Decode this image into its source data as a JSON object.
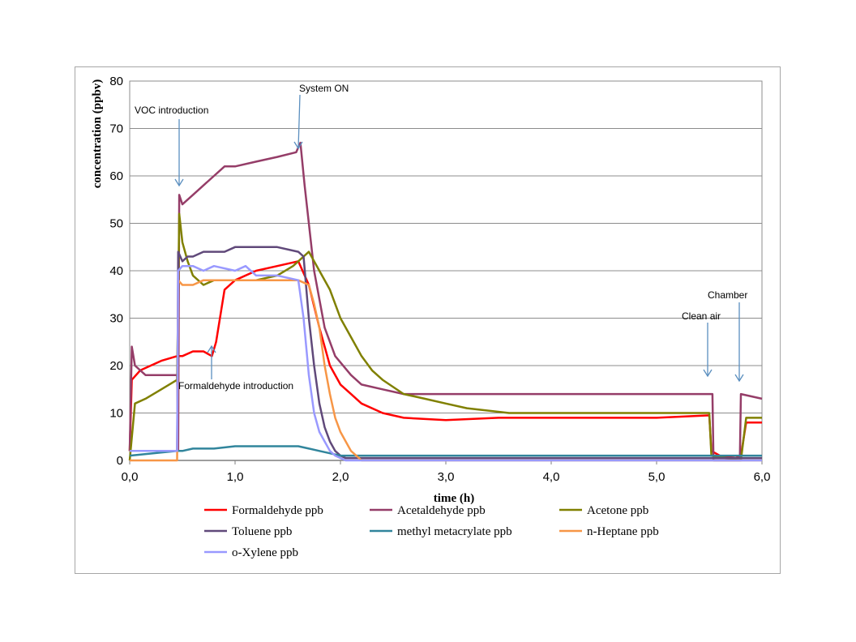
{
  "chart_data": {
    "type": "line",
    "title": "",
    "xlabel": "time (h)",
    "ylabel": "concentration (ppbv)",
    "xlim": [
      0,
      6
    ],
    "ylim": [
      0,
      80
    ],
    "x_ticks": [
      "0,0",
      "1,0",
      "2,0",
      "3,0",
      "4,0",
      "5,0",
      "6,0"
    ],
    "y_ticks": [
      "0",
      "10",
      "20",
      "30",
      "40",
      "50",
      "60",
      "70",
      "80"
    ],
    "grid": "horizontal",
    "legend_position": "bottom",
    "series": [
      {
        "name": "Formaldehyde ppb",
        "color": "#ff0000",
        "x": [
          0.0,
          0.02,
          0.1,
          0.2,
          0.3,
          0.45,
          0.5,
          0.6,
          0.7,
          0.78,
          0.82,
          0.9,
          1.0,
          1.2,
          1.4,
          1.6,
          1.7,
          1.8,
          1.9,
          2.0,
          2.1,
          2.2,
          2.4,
          2.6,
          3.0,
          3.5,
          4.0,
          5.0,
          5.5,
          5.52,
          5.6,
          5.75,
          5.8,
          5.85,
          6.0
        ],
        "y": [
          2,
          17,
          19,
          20,
          21,
          22,
          22,
          23,
          23,
          22,
          25,
          36,
          38,
          40,
          41,
          42,
          37,
          28,
          20,
          16,
          14,
          12,
          10,
          9,
          8.5,
          9,
          9,
          9,
          9.5,
          2,
          1,
          0.5,
          1,
          8,
          8
        ]
      },
      {
        "name": "Acetaldehyde ppb",
        "color": "#953d68",
        "x": [
          0.0,
          0.02,
          0.05,
          0.15,
          0.45,
          0.46,
          0.47,
          0.5,
          0.6,
          0.7,
          0.8,
          0.9,
          1.0,
          1.2,
          1.4,
          1.58,
          1.62,
          1.66,
          1.75,
          1.85,
          1.95,
          2.1,
          2.2,
          2.4,
          2.6,
          3.0,
          5.53,
          5.54,
          5.79,
          5.8,
          6.0
        ],
        "y": [
          2,
          24,
          20,
          18,
          18,
          2,
          56,
          54,
          56,
          58,
          60,
          62,
          62,
          63,
          64,
          65,
          67,
          58,
          40,
          28,
          22,
          18,
          16,
          15,
          14,
          14,
          14,
          0,
          0,
          14,
          13
        ]
      },
      {
        "name": "Acetone ppb",
        "color": "#808000",
        "x": [
          0.0,
          0.05,
          0.15,
          0.3,
          0.45,
          0.47,
          0.5,
          0.55,
          0.6,
          0.7,
          0.8,
          1.0,
          1.2,
          1.4,
          1.55,
          1.65,
          1.7,
          1.8,
          1.9,
          2.0,
          2.1,
          2.2,
          2.3,
          2.4,
          2.6,
          2.8,
          3.0,
          3.2,
          3.6,
          5.5,
          5.52,
          5.8,
          5.85,
          6.0
        ],
        "y": [
          0,
          12,
          13,
          15,
          17,
          52,
          46,
          42,
          39,
          37,
          38,
          38,
          38,
          39,
          41,
          43,
          44,
          40,
          36,
          30,
          26,
          22,
          19,
          17,
          14,
          13,
          12,
          11,
          10,
          10,
          1,
          0,
          9,
          9
        ]
      },
      {
        "name": "Toluene ppb",
        "color": "#60497a",
        "x": [
          0.0,
          0.45,
          0.46,
          0.5,
          0.55,
          0.6,
          0.7,
          0.8,
          0.9,
          1.0,
          1.2,
          1.4,
          1.6,
          1.65,
          1.7,
          1.75,
          1.8,
          1.85,
          1.9,
          1.95,
          2.0,
          2.05,
          2.15,
          2.3,
          3.0,
          4.0,
          5.0,
          6.0
        ],
        "y": [
          2,
          2,
          44,
          42,
          43,
          43,
          44,
          44,
          44,
          45,
          45,
          45,
          44,
          43,
          30,
          20,
          12,
          7,
          4,
          2,
          1,
          0.5,
          0.5,
          0.5,
          0.5,
          0.5,
          0.5,
          0.5
        ]
      },
      {
        "name": "methyl metacrylate ppb",
        "color": "#31859c",
        "x": [
          0.0,
          0.45,
          0.5,
          0.6,
          0.8,
          1.0,
          1.2,
          1.4,
          1.6,
          1.7,
          1.8,
          1.9,
          2.0,
          2.2,
          2.5,
          3.0,
          4.0,
          5.0,
          5.5,
          5.52,
          5.8,
          6.0
        ],
        "y": [
          1,
          2,
          2,
          2.5,
          2.5,
          3,
          3,
          3,
          3,
          2.5,
          2,
          1.5,
          1,
          1,
          1,
          1,
          1,
          1,
          1,
          1,
          1,
          1
        ]
      },
      {
        "name": "n-Heptane ppb",
        "color": "#f79646",
        "x": [
          0.0,
          0.45,
          0.46,
          0.5,
          0.6,
          0.7,
          0.8,
          1.0,
          1.2,
          1.4,
          1.6,
          1.7,
          1.75,
          1.8,
          1.85,
          1.9,
          1.95,
          2.0,
          2.05,
          2.1,
          2.15,
          2.2,
          2.4,
          3.0,
          4.0,
          5.0,
          6.0
        ],
        "y": [
          0,
          0,
          38,
          37,
          37,
          38,
          38,
          38,
          38,
          38,
          38,
          37,
          33,
          28,
          20,
          14,
          9,
          6,
          4,
          2,
          1,
          0,
          0,
          0,
          0,
          0,
          0
        ]
      },
      {
        "name": "o-Xylene ppb",
        "color": "#9999ff",
        "x": [
          0.0,
          0.45,
          0.46,
          0.5,
          0.6,
          0.7,
          0.8,
          1.0,
          1.1,
          1.2,
          1.4,
          1.6,
          1.65,
          1.7,
          1.75,
          1.8,
          1.85,
          1.9,
          1.95,
          2.0,
          2.05,
          2.1,
          2.2,
          3.0,
          4.0,
          5.0,
          6.0
        ],
        "y": [
          2,
          2,
          40,
          41,
          41,
          40,
          41,
          40,
          41,
          39,
          39,
          38,
          30,
          18,
          10,
          6,
          4,
          2,
          1,
          0.5,
          0,
          0,
          0,
          0,
          0,
          0,
          0
        ]
      }
    ],
    "annotations": [
      {
        "text": "VOC introduction",
        "x": 0.5,
        "y": 57
      },
      {
        "text": "System ON",
        "x": 1.62,
        "y": 65
      },
      {
        "text": "Formaldehyde introduction",
        "x": 0.78,
        "y": 22
      },
      {
        "text": "Clean air",
        "x": 5.53,
        "y": 17
      },
      {
        "text": "Chamber",
        "x": 5.8,
        "y": 16
      }
    ]
  }
}
